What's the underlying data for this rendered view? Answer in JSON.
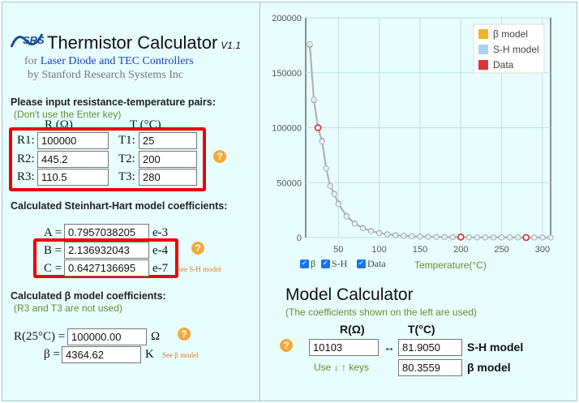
{
  "app": {
    "logo_text": "SRS",
    "title": "Thermistor Calculator",
    "version": "V1.1",
    "subtitle_for": "for",
    "subtitle_link": "Laser Diode and TEC Controllers",
    "subtitle_by": "by Stanford Research Systems Inc"
  },
  "pairs": {
    "heading": "Please input resistance-temperature pairs:",
    "note": "(Don't use the Enter key)",
    "col_r": "R (Ω)",
    "col_t": "T (°C)",
    "rows": [
      {
        "r_label": "R1:",
        "r_value": "100000",
        "t_label": "T1:",
        "t_value": "25"
      },
      {
        "r_label": "R2:",
        "r_value": "445.2",
        "t_label": "T2:",
        "t_value": "200"
      },
      {
        "r_label": "R3:",
        "r_value": "110.5",
        "t_label": "T3:",
        "t_value": "280"
      }
    ],
    "help": "?"
  },
  "sh": {
    "heading": "Calculated Steinhart-Hart model coefficients:",
    "a_label": "A =",
    "a_value": "0.7957038205",
    "a_unit": "e-3",
    "b_label": "B =",
    "b_value": "2.136932043",
    "b_unit": "e-4",
    "c_label": "C =",
    "c_value": "0.6427136695",
    "c_unit": "e-7",
    "link": "See S-H model",
    "help": "?"
  },
  "beta": {
    "heading": "Calculated β model coefficients:",
    "note": "(R3 and T3 are not used)",
    "r25_label": "R(25°C) =",
    "r25_value": "100000.00",
    "r25_unit": "Ω",
    "beta_label": "β =",
    "beta_value": "4364.62",
    "beta_unit": "K",
    "link": "See β model",
    "help": "?"
  },
  "chart_controls": {
    "beta_label": "β",
    "sh_label": "S-H",
    "data_label": "Data",
    "xlabel": "Temperature(°C)"
  },
  "model_calc": {
    "title": "Model Calculator",
    "note": "(The coefficients shown on the left are used)",
    "col_r": "R(Ω)",
    "col_t": "T(°C)",
    "r_value": "10103",
    "arrow": "↔",
    "sh_t_value": "81.9050",
    "sh_label": "S-H model",
    "keys_hint": "Use ↓ ↑ keys",
    "beta_t_value": "80.3559",
    "beta_label": "β model",
    "help": "?"
  },
  "chart_data": {
    "type": "line",
    "xlim": [
      10,
      310
    ],
    "ylim": [
      0,
      200000
    ],
    "xticks": [
      50,
      100,
      150,
      200,
      250,
      300
    ],
    "yticks": [
      0,
      50000,
      100000,
      150000,
      200000
    ],
    "grid": true,
    "legend": "top-right",
    "colors": {
      "beta": "#f0b429",
      "sh": "#a9d4f5",
      "data": "#d9383a"
    },
    "series": [
      {
        "name": "β model",
        "x": [
          15,
          20,
          25,
          30,
          35,
          40,
          45,
          50,
          60,
          70,
          80,
          90,
          100,
          110,
          120,
          130,
          140,
          150,
          160,
          170,
          180,
          190,
          200,
          210,
          220,
          230,
          240,
          250,
          260,
          270,
          280,
          290,
          300,
          310
        ],
        "values": [
          175000,
          125000,
          100000,
          88000,
          63000,
          47000,
          40000,
          31000,
          19800,
          13000,
          8800,
          6100,
          4300,
          3100,
          2300,
          1720,
          1300,
          1000,
          780,
          620,
          500,
          400,
          330,
          270,
          225,
          190,
          160,
          135,
          115,
          99,
          86,
          75,
          66,
          58
        ]
      },
      {
        "name": "S-H model",
        "x": [
          15,
          20,
          25,
          30,
          35,
          40,
          45,
          50,
          60,
          70,
          80,
          90,
          100,
          110,
          120,
          130,
          140,
          150,
          160,
          170,
          180,
          190,
          200,
          210,
          220,
          230,
          240,
          250,
          260,
          270,
          280,
          290,
          300,
          310
        ],
        "values": [
          176000,
          125500,
          100000,
          87500,
          63000,
          46800,
          39500,
          30500,
          19300,
          12600,
          8400,
          5800,
          4000,
          2900,
          2100,
          1550,
          1170,
          890,
          700,
          560,
          445,
          360,
          445,
          240,
          200,
          170,
          145,
          125,
          115,
          110,
          110.5,
          100,
          90,
          80
        ]
      },
      {
        "name": "Data",
        "x": [
          25,
          200,
          280
        ],
        "values": [
          100000,
          445.2,
          110.5
        ]
      }
    ]
  }
}
